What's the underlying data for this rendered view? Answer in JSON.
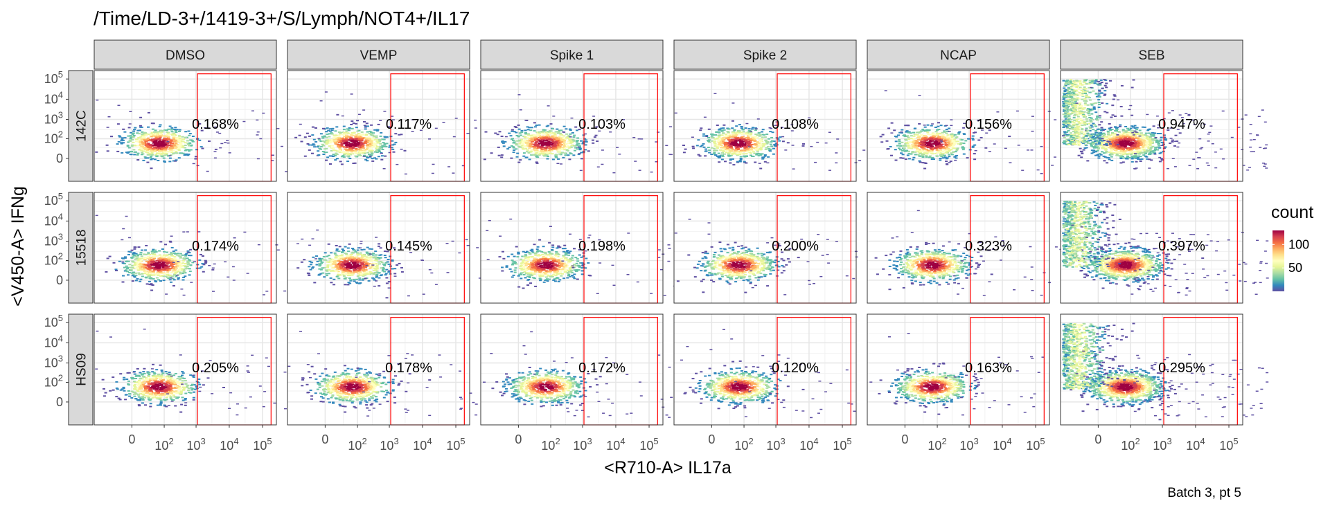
{
  "chart_data": {
    "type": "heatmap",
    "title": "/Time/LD-3+/1419-3+/S/Lymph/NOT4+/IL17",
    "xlabel": "<R710-A> IL17a",
    "ylabel": "<V450-A> IFNg",
    "caption": "Batch 3, pt 5",
    "columns": [
      "DMSO",
      "VEMP",
      "Spike 1",
      "Spike 2",
      "NCAP",
      "SEB"
    ],
    "rows": [
      "142C",
      "15518",
      "HS09"
    ],
    "x_tick_labels": [
      {
        "value": 0,
        "base": "0",
        "exp": ""
      },
      {
        "value": 100,
        "base": "10",
        "exp": "2"
      },
      {
        "value": 1000,
        "base": "10",
        "exp": "3"
      },
      {
        "value": 10000,
        "base": "10",
        "exp": "4"
      },
      {
        "value": 100000,
        "base": "10",
        "exp": "5"
      }
    ],
    "y_tick_labels": [
      {
        "value": 0,
        "base": "0",
        "exp": ""
      },
      {
        "value": 100,
        "base": "10",
        "exp": "2"
      },
      {
        "value": 1000,
        "base": "10",
        "exp": "3"
      },
      {
        "value": 10000,
        "base": "10",
        "exp": "4"
      },
      {
        "value": 100000,
        "base": "10",
        "exp": "5"
      }
    ],
    "gate": {
      "x_min": 1100,
      "x_max": 180000,
      "y_min": 0,
      "y_max": 180000,
      "color": "#ff0000"
    },
    "gate_percentages": [
      [
        "0.168%",
        "0.117%",
        "0.103%",
        "0.108%",
        "0.156%",
        "0.947%"
      ],
      [
        "0.174%",
        "0.145%",
        "0.198%",
        "0.200%",
        "0.323%",
        "0.397%"
      ],
      [
        "0.205%",
        "0.178%",
        "0.172%",
        "0.120%",
        "0.163%",
        "0.295%"
      ]
    ],
    "legend": {
      "title": "count",
      "ticks": [
        {
          "value": 100,
          "label": "100"
        },
        {
          "value": 50,
          "label": "50"
        }
      ],
      "range": [
        0,
        130
      ],
      "palette": [
        "#5E4FA2",
        "#3288BD",
        "#66C2A5",
        "#ABDDA4",
        "#E6F598",
        "#FFFFBF",
        "#FEE08B",
        "#FDAE61",
        "#F46D43",
        "#D53E4F",
        "#9E0142"
      ]
    },
    "grid": true,
    "legend_position": "right"
  }
}
